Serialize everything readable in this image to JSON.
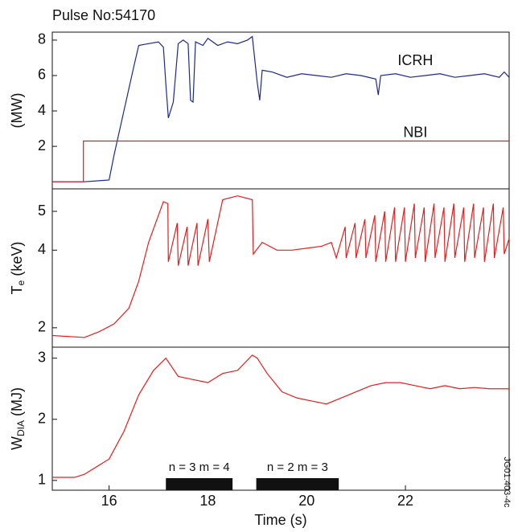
{
  "side_note": "JG01.403-4c",
  "chart_data": [
    {
      "type": "line",
      "title": "Pulse No:54170",
      "ylabel": "(MW)",
      "xlim": [
        14.85,
        24.1
      ],
      "ylim": [
        -0.4,
        8.45
      ],
      "yticks": [
        2,
        4,
        6,
        8
      ],
      "series": [
        {
          "name": "ICRH",
          "color": "#1c2a8c",
          "x": [
            14.85,
            15.5,
            16.0,
            16.1,
            16.3,
            16.5,
            16.6,
            16.8,
            17.0,
            17.1,
            17.15,
            17.2,
            17.3,
            17.4,
            17.5,
            17.6,
            17.65,
            17.7,
            17.75,
            17.9,
            18.0,
            18.2,
            18.4,
            18.6,
            18.8,
            18.9,
            19.0,
            19.05,
            19.1,
            19.3,
            19.6,
            19.9,
            20.2,
            20.5,
            20.8,
            21.1,
            21.4,
            21.45,
            21.5,
            21.8,
            22.1,
            22.4,
            22.7,
            23.0,
            23.3,
            23.6,
            23.9,
            24.0,
            24.1
          ],
          "values": [
            0,
            0,
            0.1,
            1.5,
            4,
            6.5,
            7.7,
            7.8,
            7.9,
            7.6,
            5.5,
            3.6,
            4.5,
            7.8,
            8.0,
            7.8,
            4.6,
            4.5,
            7.9,
            7.7,
            8.1,
            7.7,
            7.9,
            7.8,
            8.0,
            8.2,
            5.6,
            4.6,
            6.3,
            6.2,
            5.9,
            6.1,
            6.0,
            5.9,
            6.1,
            6.0,
            5.8,
            4.9,
            6.0,
            6.1,
            5.9,
            6.0,
            6.1,
            5.9,
            6.0,
            6.1,
            5.9,
            6.2,
            5.9
          ]
        },
        {
          "name": "NBI",
          "color": "#d42020",
          "x": [
            14.85,
            15.48,
            15.48,
            24.1
          ],
          "values": [
            0,
            0,
            2.3,
            2.3
          ]
        }
      ]
    },
    {
      "type": "line",
      "ylabel": {
        "text": "T",
        "subscript": "e",
        "unit": "(keV)"
      },
      "xlim": [
        14.85,
        24.1
      ],
      "ylim": [
        1.5,
        5.58
      ],
      "yticks": [
        2,
        4,
        5
      ],
      "series": [
        {
          "name": null,
          "color": "#e02020",
          "x": [
            14.85,
            15.5,
            15.8,
            16.1,
            16.4,
            16.6,
            16.8,
            17.0,
            17.1,
            17.19,
            17.2,
            17.38,
            17.4,
            17.58,
            17.6,
            17.78,
            17.8,
            18.0,
            18.03,
            18.3,
            18.6,
            18.9,
            18.92,
            19.1,
            19.4,
            19.7,
            20.0,
            20.3,
            20.5,
            20.6,
            20.78,
            20.8,
            20.98,
            21.0,
            21.18,
            21.2,
            21.38,
            21.4,
            21.58,
            21.6,
            21.78,
            21.8,
            21.98,
            22.0,
            22.18,
            22.2,
            22.38,
            22.4,
            22.58,
            22.6,
            22.78,
            22.8,
            22.98,
            23.0,
            23.18,
            23.2,
            23.38,
            23.4,
            23.58,
            23.6,
            23.78,
            23.8,
            23.98,
            24.0,
            24.1
          ],
          "values": [
            1.8,
            1.75,
            1.9,
            2.1,
            2.5,
            3.2,
            4.2,
            4.9,
            5.25,
            5.2,
            3.7,
            4.7,
            3.6,
            4.6,
            3.6,
            4.7,
            3.6,
            4.8,
            3.7,
            5.3,
            5.4,
            5.3,
            3.9,
            4.2,
            4.0,
            4.0,
            4.05,
            4.1,
            4.2,
            3.8,
            4.6,
            3.8,
            4.7,
            3.8,
            4.8,
            3.8,
            4.9,
            3.7,
            5.0,
            3.7,
            5.1,
            3.7,
            5.1,
            3.7,
            5.2,
            3.8,
            5.1,
            3.7,
            5.2,
            3.8,
            5.1,
            3.7,
            5.2,
            3.8,
            5.1,
            3.7,
            5.2,
            3.8,
            5.1,
            3.7,
            5.2,
            3.8,
            5.1,
            3.9,
            4.3
          ]
        }
      ]
    },
    {
      "type": "line",
      "ylabel": {
        "text": "W",
        "subscript": "DIA",
        "unit": "(MJ)"
      },
      "xlabel": "Time (s)",
      "xlim": [
        14.85,
        24.1
      ],
      "ylim": [
        0.84,
        3.18
      ],
      "yticks": [
        1,
        2,
        3
      ],
      "xticks": [
        16,
        18,
        20,
        22
      ],
      "series": [
        {
          "name": null,
          "color": "#e02020",
          "x": [
            14.85,
            15.3,
            15.5,
            15.8,
            16.0,
            16.3,
            16.6,
            16.9,
            17.15,
            17.4,
            17.7,
            18.0,
            18.3,
            18.6,
            18.9,
            19.0,
            19.2,
            19.5,
            19.8,
            20.1,
            20.4,
            20.7,
            21.0,
            21.3,
            21.6,
            21.9,
            22.2,
            22.5,
            22.8,
            23.1,
            23.4,
            23.7,
            24.1
          ],
          "values": [
            1.05,
            1.05,
            1.1,
            1.25,
            1.35,
            1.8,
            2.4,
            2.8,
            3.0,
            2.7,
            2.65,
            2.6,
            2.75,
            2.8,
            3.05,
            3.0,
            2.75,
            2.45,
            2.35,
            2.3,
            2.25,
            2.35,
            2.45,
            2.55,
            2.6,
            2.6,
            2.55,
            2.5,
            2.55,
            2.5,
            2.52,
            2.5,
            2.5
          ]
        }
      ],
      "annotations": [
        {
          "text": "n = 3  m = 4",
          "x_start": 17.15,
          "x_end": 18.5
        },
        {
          "text": "n = 2  m = 3",
          "x_start": 18.98,
          "x_end": 20.65
        }
      ]
    }
  ]
}
